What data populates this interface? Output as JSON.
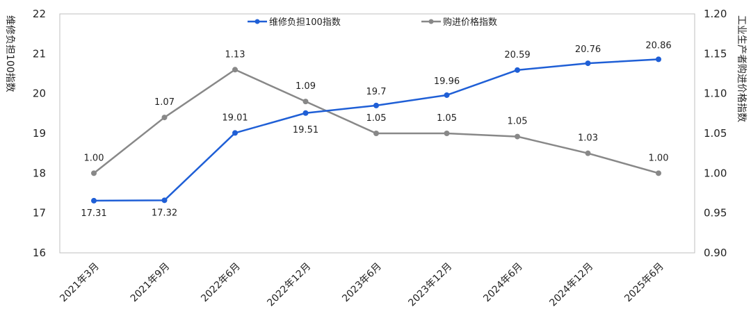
{
  "chart_data": {
    "type": "line",
    "categories": [
      "2021年3月",
      "2021年9月",
      "2022年6月",
      "2022年12月",
      "2023年6月",
      "2023年12月",
      "2024年6月",
      "2024年12月",
      "2025年6月"
    ],
    "series": [
      {
        "name": "维修负担100指数",
        "axis": "left",
        "color": "#1f5fd6",
        "values": [
          17.31,
          17.32,
          19.01,
          19.51,
          19.7,
          19.96,
          20.59,
          20.76,
          20.86
        ],
        "labels": [
          "17.31",
          "17.32",
          "19.01",
          "19.51",
          "19.7",
          "19.96",
          "20.59",
          "20.76",
          "20.86"
        ]
      },
      {
        "name": "购进价格指数",
        "axis": "right",
        "color": "#888888",
        "values": [
          1.0,
          1.07,
          1.13,
          1.09,
          1.05,
          1.05,
          1.046,
          1.025,
          1.0
        ],
        "labels": [
          "1.00",
          "1.07",
          "1.13",
          "1.09",
          "1.05",
          "1.05",
          "1.05",
          "1.03",
          "1.00"
        ]
      }
    ],
    "ylabel_left": "维修负担100指数",
    "ylabel_right": "工业生产者购进价格指数",
    "ylim_left": [
      16,
      22
    ],
    "ylim_right": [
      0.9,
      1.2
    ],
    "yticks_left": [
      "16",
      "17",
      "18",
      "19",
      "20",
      "21",
      "22"
    ],
    "yticks_right": [
      "0.90",
      "0.95",
      "1.00",
      "1.05",
      "1.10",
      "1.15",
      "1.20"
    ],
    "grid": false,
    "legend_position": "top"
  }
}
